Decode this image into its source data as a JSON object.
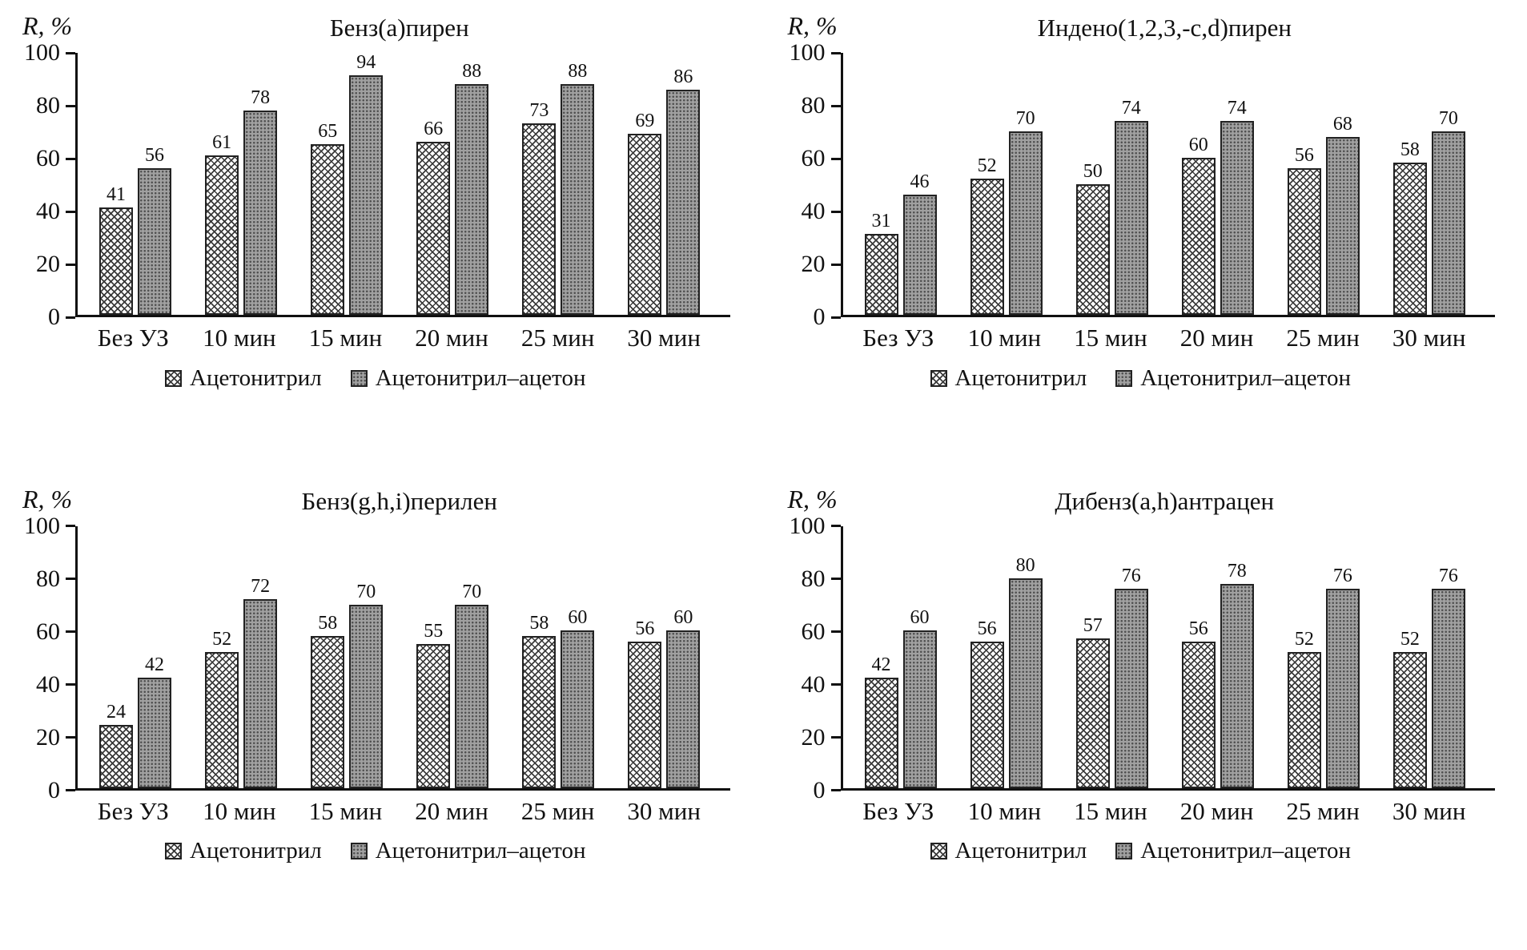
{
  "figure": {
    "ylabel": "R, %",
    "legend_labels": [
      "Ацетонитрил",
      "Ацетонитрил–ацетон"
    ]
  },
  "colors": {
    "background": "#ffffff",
    "text": "#111111",
    "axis": "#111111",
    "bar_outline": "#222222",
    "crosshatch_line": "#3a3a3a",
    "dots_background": "#a0a0a0",
    "dot_color": "#4f4f4f"
  },
  "chart_data": [
    {
      "type": "bar",
      "title": "Бенз(а)пирен",
      "ylabel": "R, %",
      "xlabel": "",
      "ylim": [
        0,
        100
      ],
      "yticks": [
        0,
        20,
        40,
        60,
        80,
        100
      ],
      "grid": false,
      "legend_position": "bottom",
      "categories": [
        "Без УЗ",
        "10 мин",
        "15 мин",
        "20 мин",
        "25 мин",
        "30 мин"
      ],
      "series": [
        {
          "name": "Ацетонитрил",
          "pattern": "crosshatch",
          "values": [
            41,
            61,
            65,
            66,
            73,
            69
          ]
        },
        {
          "name": "Ацетонитрил–ацетон",
          "pattern": "dots",
          "values": [
            56,
            78,
            94,
            88,
            88,
            86
          ]
        }
      ]
    },
    {
      "type": "bar",
      "title": "Индено(1,2,3,-c,d)пирен",
      "ylabel": "R, %",
      "xlabel": "",
      "ylim": [
        0,
        100
      ],
      "yticks": [
        0,
        20,
        40,
        60,
        80,
        100
      ],
      "grid": false,
      "legend_position": "bottom",
      "categories": [
        "Без УЗ",
        "10 мин",
        "15 мин",
        "20 мин",
        "25 мин",
        "30 мин"
      ],
      "series": [
        {
          "name": "Ацетонитрил",
          "pattern": "crosshatch",
          "values": [
            31,
            52,
            50,
            60,
            56,
            58
          ]
        },
        {
          "name": "Ацетонитрил–ацетон",
          "pattern": "dots",
          "values": [
            46,
            70,
            74,
            74,
            68,
            70
          ]
        }
      ]
    },
    {
      "type": "bar",
      "title": "Бенз(g,h,i)перилен",
      "ylabel": "R, %",
      "xlabel": "",
      "ylim": [
        0,
        100
      ],
      "yticks": [
        0,
        20,
        40,
        60,
        80,
        100
      ],
      "grid": false,
      "legend_position": "bottom",
      "categories": [
        "Без УЗ",
        "10 мин",
        "15 мин",
        "20 мин",
        "25 мин",
        "30 мин"
      ],
      "series": [
        {
          "name": "Ацетонитрил",
          "pattern": "crosshatch",
          "values": [
            24,
            52,
            58,
            55,
            58,
            56
          ]
        },
        {
          "name": "Ацетонитрил–ацетон",
          "pattern": "dots",
          "values": [
            42,
            72,
            70,
            70,
            60,
            60
          ]
        }
      ]
    },
    {
      "type": "bar",
      "title": "Дибенз(a,h)антрацен",
      "ylabel": "R, %",
      "xlabel": "",
      "ylim": [
        0,
        100
      ],
      "yticks": [
        0,
        20,
        40,
        60,
        80,
        100
      ],
      "grid": false,
      "legend_position": "bottom",
      "categories": [
        "Без УЗ",
        "10 мин",
        "15 мин",
        "20 мин",
        "25 мин",
        "30 мин"
      ],
      "series": [
        {
          "name": "Ацетонитрил",
          "pattern": "crosshatch",
          "values": [
            42,
            56,
            57,
            56,
            52,
            52
          ]
        },
        {
          "name": "Ацетонитрил–ацетон",
          "pattern": "dots",
          "values": [
            60,
            80,
            76,
            78,
            76,
            76
          ]
        }
      ]
    }
  ]
}
